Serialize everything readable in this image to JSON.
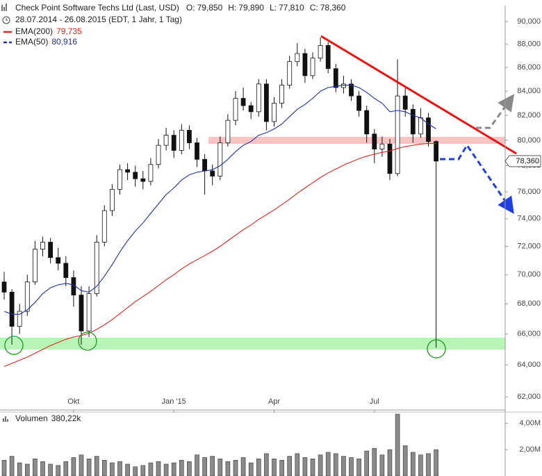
{
  "chart_data": {
    "type": "candlestick",
    "title": "Check Point Software Techs Ltd (Last, USD)",
    "subtitle": "28.07.2014 - 26.08.2015 (EDT, 1 Jahr, 1 Tag)",
    "quote": [
      {
        "name": "O:",
        "value": 79850,
        "label": "79,850"
      },
      {
        "name": "H:",
        "value": 79890,
        "label": "79,890"
      },
      {
        "name": "L:",
        "value": 77810,
        "label": "77,810"
      },
      {
        "name": "C:",
        "value": 78360,
        "label": "78,360"
      }
    ],
    "categories": [
      null,
      null,
      null,
      null,
      null,
      null,
      null,
      null,
      null,
      "Okt",
      null,
      null,
      null,
      null,
      null,
      null,
      null,
      null,
      null,
      null,
      null,
      null,
      "Jan '15",
      null,
      null,
      null,
      null,
      null,
      null,
      null,
      null,
      null,
      null,
      null,
      null,
      "Apr",
      null,
      null,
      null,
      null,
      null,
      null,
      null,
      null,
      null,
      null,
      null,
      null,
      "Jul",
      null,
      null,
      null,
      null,
      null,
      null,
      null,
      null
    ],
    "ohlc": [
      [
        69500,
        70200,
        68300,
        68800
      ],
      [
        68800,
        69000,
        65300,
        66500
      ],
      [
        66500,
        68000,
        66000,
        67500
      ],
      [
        67500,
        70000,
        67200,
        69500
      ],
      [
        69500,
        72400,
        69300,
        71800
      ],
      [
        71800,
        72700,
        71300,
        72300
      ],
      [
        72300,
        72600,
        70800,
        71200
      ],
      [
        71200,
        71900,
        70300,
        70800
      ],
      [
        70800,
        71300,
        69200,
        69800
      ],
      [
        69800,
        70300,
        67800,
        68600
      ],
      [
        68600,
        69200,
        65300,
        66200
      ],
      [
        66200,
        69200,
        65800,
        68700
      ],
      [
        68700,
        72800,
        68500,
        72300
      ],
      [
        72300,
        75000,
        72000,
        74600
      ],
      [
        74600,
        76600,
        74200,
        76200
      ],
      [
        76200,
        78100,
        75800,
        77700
      ],
      [
        77700,
        78200,
        76900,
        77500
      ],
      [
        77500,
        78000,
        76400,
        77000
      ],
      [
        77000,
        77600,
        76200,
        76800
      ],
      [
        76800,
        78600,
        76500,
        78100
      ],
      [
        78100,
        80100,
        77800,
        79600
      ],
      [
        79600,
        81000,
        79200,
        80400
      ],
      [
        80400,
        80800,
        78600,
        79200
      ],
      [
        79200,
        81300,
        78900,
        80800
      ],
      [
        80800,
        81200,
        79300,
        79800
      ],
      [
        79800,
        80200,
        77900,
        78500
      ],
      [
        78500,
        78900,
        75800,
        77600
      ],
      [
        77600,
        78100,
        76500,
        77200
      ],
      [
        77200,
        80300,
        76900,
        79800
      ],
      [
        79800,
        82100,
        79500,
        81600
      ],
      [
        81600,
        84000,
        81200,
        83400
      ],
      [
        83400,
        84300,
        82400,
        82800
      ],
      [
        82800,
        83100,
        81700,
        82300
      ],
      [
        82300,
        85000,
        81900,
        84600
      ],
      [
        84600,
        85000,
        80800,
        81500
      ],
      [
        81500,
        83500,
        81100,
        83000
      ],
      [
        83000,
        85000,
        82600,
        84500
      ],
      [
        84500,
        87000,
        84200,
        86500
      ],
      [
        86500,
        88100,
        86100,
        87200
      ],
      [
        87200,
        87600,
        84700,
        85300
      ],
      [
        85300,
        87300,
        85000,
        86800
      ],
      [
        86800,
        88600,
        86500,
        87900
      ],
      [
        87900,
        88200,
        85500,
        85900
      ],
      [
        85900,
        86300,
        83900,
        84300
      ],
      [
        84300,
        85300,
        83800,
        84600
      ],
      [
        84600,
        85000,
        83200,
        83600
      ],
      [
        83600,
        84000,
        81900,
        82400
      ],
      [
        82400,
        82800,
        79800,
        80500
      ],
      [
        80500,
        80900,
        78200,
        79300
      ],
      [
        79300,
        80300,
        78700,
        79700
      ],
      [
        79700,
        80100,
        76900,
        77400
      ],
      [
        77400,
        86700,
        77200,
        83600
      ],
      [
        83600,
        84300,
        81900,
        82500
      ],
      [
        82500,
        82900,
        79800,
        80500
      ],
      [
        80500,
        82600,
        80200,
        81800
      ],
      [
        81800,
        82200,
        79500,
        79900
      ],
      [
        79900,
        80000,
        65100,
        78360
      ]
    ],
    "series": [
      {
        "name": "EMA(200)",
        "color": "#e8221c",
        "last": {
          "value": 79735,
          "label": "79,735"
        },
        "values": [
          63900,
          64100,
          64300,
          64500,
          64750,
          65000,
          65250,
          65450,
          65650,
          65800,
          65900,
          66050,
          66300,
          66600,
          66950,
          67350,
          67750,
          68150,
          68500,
          68850,
          69250,
          69650,
          70000,
          70400,
          70750,
          71050,
          71350,
          71650,
          72000,
          72400,
          72800,
          73200,
          73550,
          73950,
          74300,
          74650,
          75050,
          75450,
          75900,
          76300,
          76700,
          77100,
          77450,
          77750,
          78050,
          78300,
          78550,
          78750,
          78900,
          79050,
          79150,
          79350,
          79500,
          79600,
          79700,
          79750,
          79735
        ]
      },
      {
        "name": "EMA(50)",
        "color": "#1f2fa8",
        "last": {
          "value": 80916,
          "label": "80,916"
        },
        "values": [
          67500,
          67300,
          67300,
          67600,
          68100,
          68700,
          69100,
          69300,
          69400,
          69300,
          68900,
          68800,
          69200,
          69900,
          70700,
          71600,
          72400,
          73100,
          73700,
          74400,
          75100,
          75800,
          76300,
          76900,
          77300,
          77500,
          77600,
          77700,
          78000,
          78500,
          79100,
          79600,
          79900,
          80400,
          80600,
          80900,
          81300,
          81900,
          82500,
          82900,
          83400,
          84000,
          84300,
          84400,
          84500,
          84500,
          84300,
          83900,
          83400,
          83000,
          82300,
          82400,
          82300,
          82000,
          81800,
          81300,
          80916
        ]
      }
    ],
    "ylim": [
      61200,
      91200
    ],
    "log": true,
    "yticks": [
      {
        "value": 62000,
        "label": "62,000"
      },
      {
        "value": 64000,
        "label": "64,000"
      },
      {
        "value": 66000,
        "label": "66,000"
      },
      {
        "value": 68000,
        "label": "68,000"
      },
      {
        "value": 70000,
        "label": "70,000"
      },
      {
        "value": 72000,
        "label": "72,000"
      },
      {
        "value": 74000,
        "label": "74,000"
      },
      {
        "value": 76000,
        "label": "76,000"
      },
      {
        "value": 78000,
        "label": "78,000"
      },
      {
        "value": 80000,
        "label": "80,000"
      },
      {
        "value": 82000,
        "label": "82,000"
      },
      {
        "value": 84000,
        "label": "84,000"
      },
      {
        "value": 86000,
        "label": "86,000"
      },
      {
        "value": 88000,
        "label": "88,000"
      },
      {
        "value": 90000,
        "label": "90,000"
      }
    ],
    "volume": {
      "name": "Volumen",
      "last": {
        "value": 380220,
        "label": "380,22k"
      },
      "color": "#8a8a8a",
      "values": [
        1200000,
        1500000,
        1000000,
        900000,
        1300000,
        1100000,
        900000,
        800000,
        1100000,
        1400000,
        1600000,
        1300000,
        1500000,
        1200000,
        1000000,
        1100000,
        900000,
        700000,
        800000,
        1000000,
        1100000,
        900000,
        1000000,
        1200000,
        1100000,
        1600000,
        1400000,
        1500000,
        1300000,
        1100000,
        1200000,
        1400000,
        1000000,
        1300000,
        1700000,
        1300000,
        1200000,
        1500000,
        1700000,
        1400000,
        1300000,
        1600000,
        1800000,
        1700000,
        1500000,
        1400000,
        1300000,
        1900000,
        2100000,
        1600000,
        2000000,
        4700000,
        2300000,
        1800000,
        1600000,
        1700000,
        2000000
      ],
      "ylim": [
        0,
        4700000
      ],
      "yticks": [
        {
          "value": 2000000,
          "label": "2,00M"
        },
        {
          "value": 4000000,
          "label": "4,00M"
        }
      ]
    }
  }
}
